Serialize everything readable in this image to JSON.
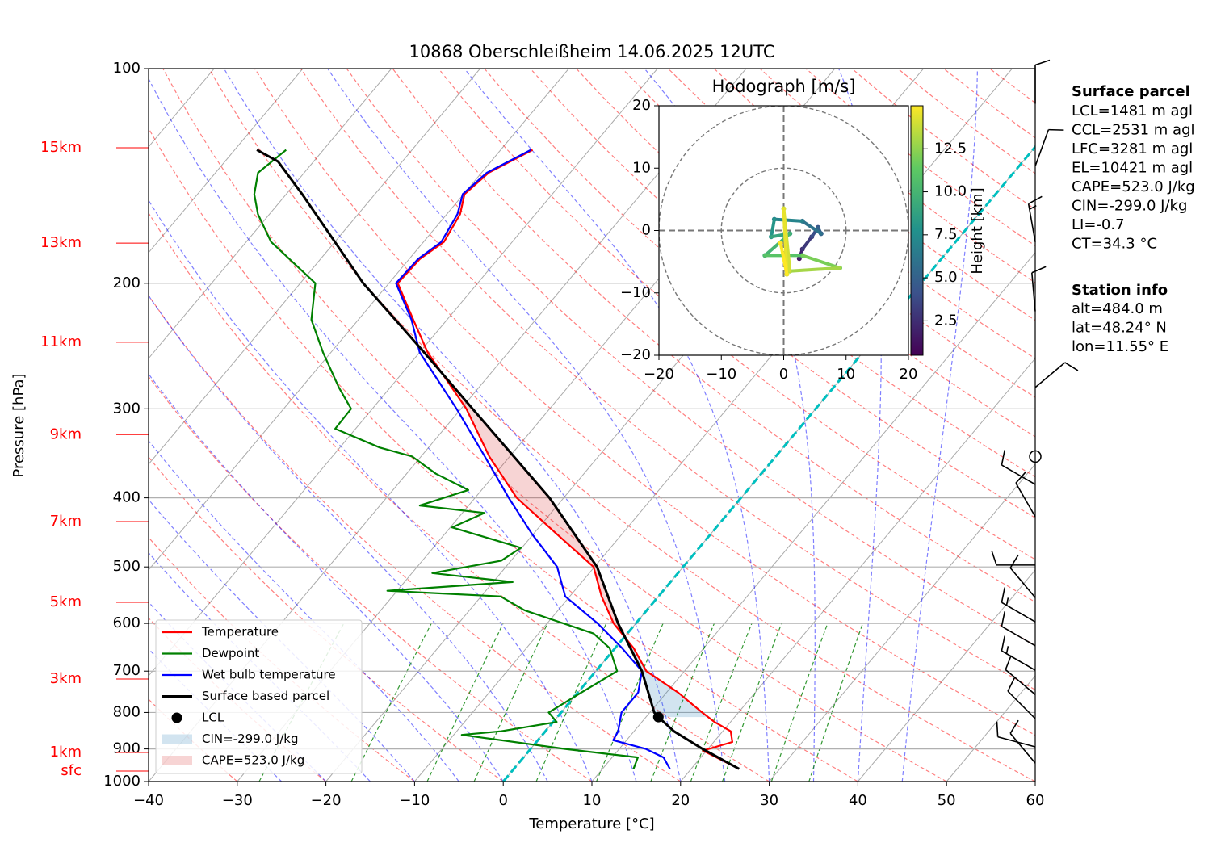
{
  "chart_data": [
    {
      "type": "skewt",
      "title": "10868 Oberschleißheim 14.06.2025 12UTC",
      "xlabel": "Temperature [°C]",
      "ylabel": "Pressure [hPa]",
      "xlim": [
        -40,
        60
      ],
      "ylim": [
        1000,
        100
      ],
      "log_y": true,
      "grid": true,
      "legend": "lower left",
      "xticks": [
        {
          "value": -40,
          "label": "−40"
        },
        {
          "value": -30,
          "label": "−30"
        },
        {
          "value": -20,
          "label": "−20"
        },
        {
          "value": -10,
          "label": "−10"
        },
        0,
        10,
        20,
        30,
        40,
        50,
        60
      ],
      "yticks": [
        100,
        200,
        300,
        400,
        500,
        600,
        700,
        800,
        900,
        1000
      ],
      "height_ticks": [
        {
          "value": 129.1,
          "label": "15km"
        },
        {
          "value": 175.7,
          "label": "13km"
        },
        {
          "value": 242.0,
          "label": "11km"
        },
        {
          "value": 326.1,
          "label": "9km"
        },
        {
          "value": 431.8,
          "label": "7km"
        },
        {
          "value": 560.6,
          "label": "5km"
        },
        {
          "value": 718.0,
          "label": "3km"
        },
        {
          "value": 910.5,
          "label": "1km"
        },
        {
          "value": 966.7,
          "label": "sfc"
        }
      ],
      "height_tick_color": "#ff0000",
      "zero_isotherm_color": "#00bfbf",
      "series": [
        {
          "name": "Temperature",
          "color": "#ff0000",
          "pressure": [
            960,
            905,
            880,
            850,
            825,
            800,
            750,
            700,
            650,
            600,
            550,
            500,
            450,
            400,
            350,
            300,
            250,
            225,
            200,
            185,
            175,
            160,
            150,
            140,
            130
          ],
          "values": [
            25.4,
            19.6,
            22.1,
            20.9,
            18.2,
            15.9,
            11.3,
            5.7,
            2.1,
            -2.5,
            -6.4,
            -10.1,
            -17.3,
            -25.3,
            -32.3,
            -39.4,
            -49.1,
            -53.8,
            -59.0,
            -58.8,
            -57.7,
            -58.5,
            -59.9,
            -59.2,
            -56.4
          ]
        },
        {
          "name": "Dewpoint",
          "color": "#008000",
          "pressure": [
            960,
            925,
            900,
            860,
            850,
            825,
            800,
            750,
            700,
            650,
            620,
            575,
            550,
            540,
            525,
            510,
            490,
            470,
            440,
            420,
            410,
            390,
            370,
            350,
            340,
            320,
            300,
            280,
            250,
            225,
            200,
            175,
            160,
            150,
            140,
            130
          ],
          "values": [
            13.5,
            12.9,
            3.9,
            -9.1,
            -5.0,
            0.4,
            -1.4,
            0.4,
            2.4,
            -0.6,
            -3.8,
            -13.8,
            -17.8,
            -31.1,
            -17.8,
            -27.7,
            -21.1,
            -20.1,
            -29.8,
            -27.5,
            -35.5,
            -31.5,
            -36.7,
            -41.0,
            -45.5,
            -52.3,
            -52.4,
            -55.8,
            -60.9,
            -65.3,
            -68.3,
            -77.2,
            -81.3,
            -83.6,
            -85.2,
            -84.2
          ]
        },
        {
          "name": "Wet bulb temperature",
          "color": "#0000ff",
          "pressure": [
            960,
            925,
            900,
            875,
            850,
            800,
            750,
            700,
            650,
            600,
            550,
            500,
            450,
            400,
            350,
            300,
            250,
            225,
            200,
            185,
            175,
            160,
            150,
            140,
            130
          ],
          "values": [
            17.6,
            15.8,
            13.0,
            8.5,
            8.2,
            6.8,
            6.8,
            5.2,
            0.8,
            -4.3,
            -10.5,
            -14.2,
            -20.1,
            -26.2,
            -32.8,
            -40.5,
            -50.0,
            -54.0,
            -59.2,
            -59.0,
            -58.0,
            -58.8,
            -60.1,
            -59.4,
            -56.6
          ]
        },
        {
          "name": "Surface based parcel",
          "color": "#000000",
          "pressure": [
            960,
            900,
            850,
            812,
            800,
            700,
            600,
            500,
            400,
            300,
            250,
            200,
            150,
            135,
            130
          ],
          "values": [
            25.4,
            19.4,
            14.5,
            11.4,
            10.5,
            5.2,
            -2.0,
            -9.7,
            -21.6,
            -38.7,
            -49.5,
            -62.9,
            -78.2,
            -84.0,
            -87.5
          ]
        }
      ],
      "lcl": {
        "name": "LCL",
        "pressure": 812,
        "value": 11.4,
        "color": "#000000"
      },
      "cin_label": "CIN=-299.0 J/kg",
      "cape_label": "CAPE=523.0 J/kg",
      "cin_color": "#1f77b4",
      "cape_color": "#d62728",
      "wind": {
        "pressure": [
          112,
          137,
          175,
          219,
          280,
          350,
          383,
          425,
          497,
          552,
          597,
          645,
          698,
          755,
          816,
          894,
          942
        ],
        "speed": [
          10,
          10,
          15,
          10,
          10,
          0,
          10,
          10,
          10,
          10,
          15,
          10,
          15,
          10,
          10,
          10,
          10
        ],
        "direction": [
          0,
          20,
          350,
          355,
          50,
          0,
          300,
          330,
          270,
          320,
          300,
          300,
          300,
          310,
          315,
          285,
          320
        ]
      }
    },
    {
      "type": "hodograph",
      "title": "Hodograph [m/s]",
      "xlim": [
        -20,
        20
      ],
      "ylim": [
        -20,
        20
      ],
      "xticks": [
        {
          "value": -20,
          "label": "−20"
        },
        {
          "value": -10,
          "label": "−10"
        },
        0,
        10,
        20
      ],
      "yticks": [
        {
          "value": -20,
          "label": "−20"
        },
        {
          "value": -10,
          "label": "−10"
        },
        0,
        10,
        20
      ],
      "rings": [
        10,
        20
      ],
      "u": [
        2.5,
        3,
        4.5,
        5.5,
        6,
        3,
        -1.5,
        -2,
        1,
        -3,
        3,
        9,
        1,
        0,
        0.5,
        -0.5
      ],
      "v": [
        -4.5,
        -3,
        -1,
        0.5,
        -0.5,
        1.5,
        1.8,
        -1,
        -0.5,
        -4,
        -4,
        -6,
        -6.5,
        3.5,
        -7,
        -2
      ],
      "height": [
        1,
        2,
        3,
        4,
        5,
        6,
        7,
        8,
        9,
        10,
        11,
        12,
        13,
        14,
        14.5,
        15
      ],
      "colorbar": {
        "label": "Height [km]",
        "lim": [
          0.5,
          15
        ],
        "colormap": "viridis",
        "ticks": [
          2.5,
          {
            "value": 5,
            "label": "5.0"
          },
          7.5,
          {
            "value": 10,
            "label": "10.0"
          },
          12.5
        ]
      }
    }
  ],
  "info": {
    "parcel_title": "Surface parcel",
    "parcel_lines": [
      "LCL=1481 m agl",
      "CCL=2531 m agl",
      "LFC=3281 m agl",
      "EL=10421 m agl",
      "CAPE=523.0 J/kg",
      "CIN=-299.0 J/kg",
      "LI=-0.7",
      "CT=34.3 °C"
    ],
    "station_title": "Station info",
    "station_lines": [
      "alt=484.0 m",
      "lat=48.24° N",
      "lon=11.55° E"
    ]
  }
}
